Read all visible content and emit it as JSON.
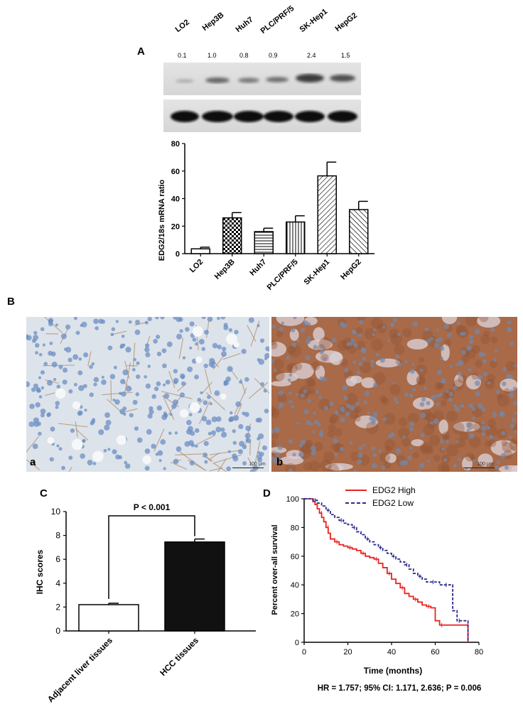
{
  "panel_labels": {
    "a": "A",
    "b": "B",
    "c": "C",
    "d": "D"
  },
  "western_blot": {
    "lanes": [
      {
        "name": "LO2",
        "density": "0.1"
      },
      {
        "name": "Hep3B",
        "density": "1.0"
      },
      {
        "name": "Huh7",
        "density": "0.8"
      },
      {
        "name": "PLC/PRF/5",
        "density": "0.9"
      },
      {
        "name": "SK-Hep1",
        "density": "2.4"
      },
      {
        "name": "HepG2",
        "density": "1.5"
      }
    ]
  },
  "ihc_images": {
    "left_label": "a",
    "left_scale": "100 μm",
    "right_label": "b",
    "right_scale": "100 μm"
  },
  "chart_data": [
    {
      "id": "mrna",
      "type": "bar",
      "categories": [
        "LO2",
        "Hep3B",
        "Huh7",
        "PLC/PRF/5",
        "SK-Hep1",
        "HepG2"
      ],
      "values": [
        3.5,
        26,
        16,
        23,
        56.5,
        32
      ],
      "errors": [
        1.2,
        3.8,
        2.5,
        4.5,
        10,
        6
      ],
      "patterns": [
        "none",
        "checker",
        "hlines",
        "vlines",
        "diag-right",
        "diag-left"
      ],
      "ylabel": "EDG2/18s mRNA ratio",
      "ylim": [
        0,
        80
      ],
      "yticks": [
        0,
        20,
        40,
        60,
        80
      ]
    },
    {
      "id": "ihc",
      "type": "bar",
      "categories": [
        "Adjacent liver tissues",
        "HCC tissues"
      ],
      "values": [
        2.2,
        7.45
      ],
      "errors": [
        0.12,
        0.25
      ],
      "colors": [
        "#ffffff",
        "#111111"
      ],
      "ylabel": "IHC scores",
      "ylim": [
        0,
        10
      ],
      "yticks": [
        0,
        2,
        4,
        6,
        8,
        10
      ],
      "annotation": "P < 0.001"
    },
    {
      "id": "km",
      "type": "line",
      "xlabel": "Time (months)",
      "ylabel": "Percent over-all survival",
      "xlim": [
        0,
        80
      ],
      "ylim": [
        0,
        100
      ],
      "xticks": [
        0,
        20,
        40,
        60,
        80
      ],
      "yticks": [
        0,
        20,
        40,
        60,
        80,
        100
      ],
      "legend_position": "top",
      "series": [
        {
          "name": "EDG2 High",
          "color": "#e8231f",
          "dash": "solid",
          "x": [
            0,
            2,
            4,
            5,
            6,
            7,
            8,
            9,
            10,
            11,
            12,
            14,
            16,
            18,
            20,
            22,
            24,
            26,
            28,
            30,
            32,
            34,
            36,
            38,
            40,
            42,
            44,
            46,
            48,
            50,
            52,
            54,
            56,
            58,
            60,
            62,
            66,
            70,
            74,
            75
          ],
          "y": [
            100,
            100,
            98,
            96,
            93,
            90,
            87,
            84,
            80,
            76,
            72,
            70,
            68,
            67,
            66,
            65,
            64,
            62,
            60,
            59,
            58,
            55,
            52,
            48,
            44,
            41,
            38,
            34,
            32,
            30,
            28,
            26,
            25,
            24,
            15,
            12,
            12,
            12,
            12,
            0
          ]
        },
        {
          "name": "EDG2 Low",
          "color": "#2b2b8c",
          "dash": "dashed",
          "x": [
            0,
            2,
            4,
            6,
            8,
            10,
            12,
            14,
            16,
            18,
            20,
            22,
            24,
            26,
            28,
            30,
            32,
            34,
            36,
            38,
            40,
            42,
            44,
            46,
            48,
            50,
            52,
            54,
            56,
            58,
            60,
            62,
            64,
            66,
            68,
            70,
            72,
            74,
            75
          ],
          "y": [
            100,
            100,
            99,
            97,
            95,
            92,
            89,
            87,
            85,
            83,
            82,
            80,
            77,
            75,
            72,
            70,
            68,
            66,
            64,
            62,
            60,
            58,
            56,
            54,
            51,
            48,
            46,
            44,
            42,
            42,
            42,
            40,
            40,
            40,
            22,
            15,
            15,
            15,
            0
          ]
        }
      ],
      "footnote": "HR = 1.757; 95% CI: 1.171, 2.636; P = 0.006"
    }
  ]
}
